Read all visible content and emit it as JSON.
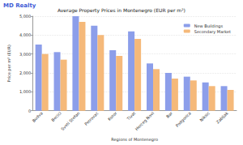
{
  "chart_data": {
    "type": "bar",
    "title": "Average Property Prices in Montenegro (EUR per m²)",
    "annotations": [
      "MD Realty"
    ],
    "x_label": "Regions of Montenegro",
    "y_label": "Price per m² (EUR)",
    "categories": [
      "Budva",
      "Becici",
      "Sveti Stefan",
      "Petrovac",
      "Kotor",
      "Tivat",
      "Herceg Novi",
      "Bar",
      "Podgorica",
      "Niksic",
      "Zabljak"
    ],
    "series": [
      {
        "name": "New Buildings",
        "color": "#8c9eea",
        "values": [
          3500,
          3100,
          5000,
          4500,
          3200,
          4200,
          2500,
          2000,
          1800,
          1500,
          1300
        ]
      },
      {
        "name": "Secondary Market",
        "color": "#f5b97a",
        "values": [
          3000,
          2700,
          4700,
          4000,
          2900,
          3800,
          2200,
          1700,
          1600,
          1300,
          1100
        ]
      }
    ],
    "ylim": [
      0,
      5000
    ],
    "yticks": [
      0,
      1000,
      2000,
      3000,
      4000,
      5000
    ],
    "grid": true,
    "legend": "upper right"
  }
}
